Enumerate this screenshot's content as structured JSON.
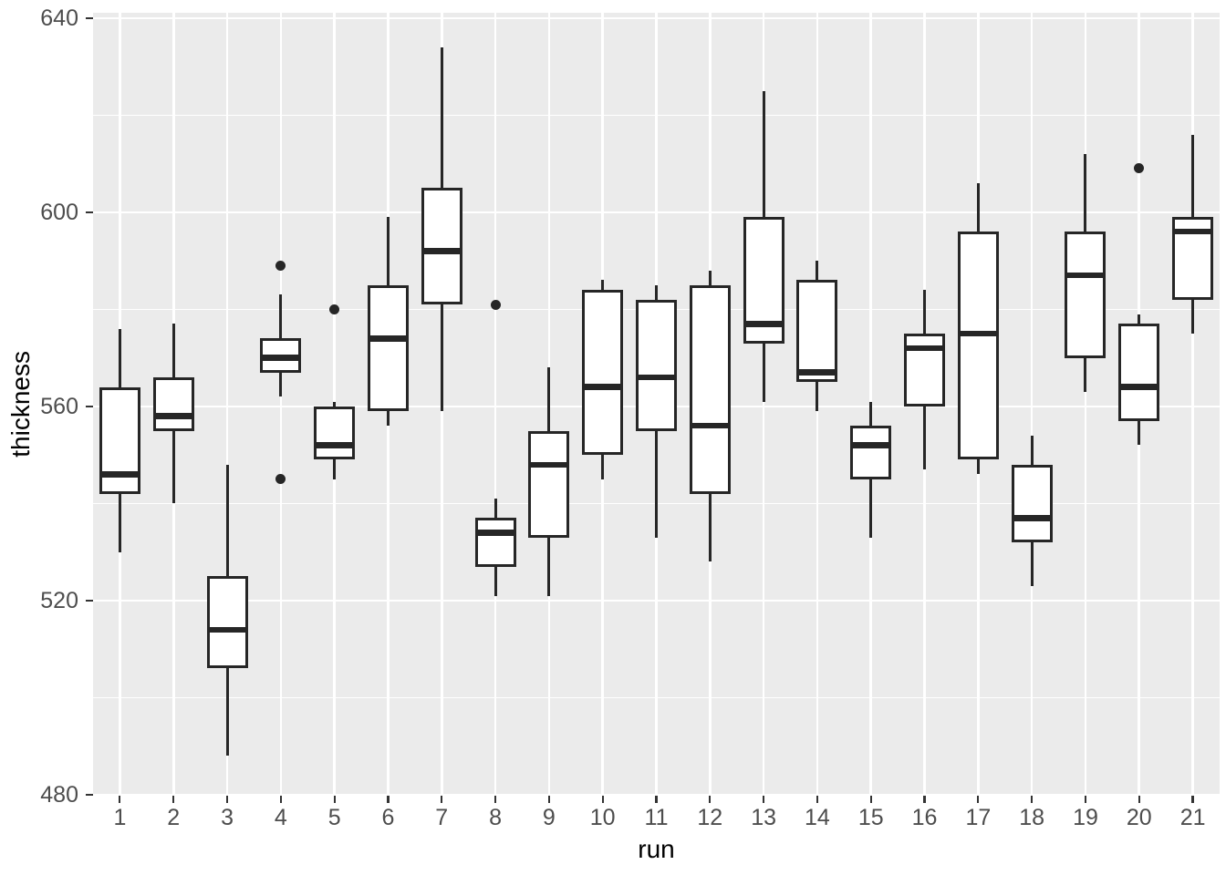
{
  "chart_data": {
    "type": "boxplot",
    "title": "",
    "xlabel": "run",
    "ylabel": "thickness",
    "categories": [
      "1",
      "2",
      "3",
      "4",
      "5",
      "6",
      "7",
      "8",
      "9",
      "10",
      "11",
      "12",
      "13",
      "14",
      "15",
      "16",
      "17",
      "18",
      "19",
      "20",
      "21"
    ],
    "ylim": [
      479.8,
      641.1
    ],
    "y_axis": {
      "ticks": [
        480,
        520,
        560,
        600,
        640
      ],
      "minor_ticks": [
        500,
        540,
        580,
        620
      ],
      "grid": "on",
      "tick_labels": [
        "480",
        "520",
        "560",
        "600",
        "640"
      ]
    },
    "boxes": [
      {
        "run": "1",
        "whisker_low": 530,
        "q1": 542,
        "median": 546,
        "q3": 564,
        "whisker_high": 576,
        "outliers": []
      },
      {
        "run": "2",
        "whisker_low": 540,
        "q1": 555,
        "median": 558,
        "q3": 566,
        "whisker_high": 577,
        "outliers": []
      },
      {
        "run": "3",
        "whisker_low": 488,
        "q1": 506,
        "median": 514,
        "q3": 525,
        "whisker_high": 548,
        "outliers": []
      },
      {
        "run": "4",
        "whisker_low": 562,
        "q1": 567,
        "median": 570,
        "q3": 574,
        "whisker_high": 583,
        "outliers": [
          589,
          545
        ]
      },
      {
        "run": "5",
        "whisker_low": 545,
        "q1": 549,
        "median": 552,
        "q3": 560,
        "whisker_high": 561,
        "outliers": [
          580
        ]
      },
      {
        "run": "6",
        "whisker_low": 556,
        "q1": 559,
        "median": 574,
        "q3": 585,
        "whisker_high": 599,
        "outliers": []
      },
      {
        "run": "7",
        "whisker_low": 559,
        "q1": 581,
        "median": 592,
        "q3": 605,
        "whisker_high": 634,
        "outliers": []
      },
      {
        "run": "8",
        "whisker_low": 521,
        "q1": 527,
        "median": 534,
        "q3": 537,
        "whisker_high": 541,
        "outliers": [
          581
        ]
      },
      {
        "run": "9",
        "whisker_low": 521,
        "q1": 533,
        "median": 548,
        "q3": 555,
        "whisker_high": 568,
        "outliers": []
      },
      {
        "run": "10",
        "whisker_low": 545,
        "q1": 550,
        "median": 564,
        "q3": 584,
        "whisker_high": 586,
        "outliers": []
      },
      {
        "run": "11",
        "whisker_low": 533,
        "q1": 555,
        "median": 566,
        "q3": 582,
        "whisker_high": 585,
        "outliers": []
      },
      {
        "run": "12",
        "whisker_low": 528,
        "q1": 542,
        "median": 556,
        "q3": 585,
        "whisker_high": 588,
        "outliers": []
      },
      {
        "run": "13",
        "whisker_low": 561,
        "q1": 573,
        "median": 577,
        "q3": 599,
        "whisker_high": 625,
        "outliers": []
      },
      {
        "run": "14",
        "whisker_low": 559,
        "q1": 565,
        "median": 567,
        "q3": 586,
        "whisker_high": 590,
        "outliers": []
      },
      {
        "run": "15",
        "whisker_low": 533,
        "q1": 545,
        "median": 552,
        "q3": 556,
        "whisker_high": 561,
        "outliers": []
      },
      {
        "run": "16",
        "whisker_low": 547,
        "q1": 560,
        "median": 572,
        "q3": 575,
        "whisker_high": 584,
        "outliers": []
      },
      {
        "run": "17",
        "whisker_low": 546,
        "q1": 549,
        "median": 575,
        "q3": 596,
        "whisker_high": 606,
        "outliers": []
      },
      {
        "run": "18",
        "whisker_low": 523,
        "q1": 532,
        "median": 537,
        "q3": 548,
        "whisker_high": 554,
        "outliers": []
      },
      {
        "run": "19",
        "whisker_low": 563,
        "q1": 570,
        "median": 587,
        "q3": 596,
        "whisker_high": 612,
        "outliers": []
      },
      {
        "run": "20",
        "whisker_low": 552,
        "q1": 557,
        "median": 564,
        "q3": 577,
        "whisker_high": 579,
        "outliers": [
          609
        ]
      },
      {
        "run": "21",
        "whisker_low": 575,
        "q1": 582,
        "median": 596,
        "q3": 599,
        "whisker_high": 616,
        "outliers": []
      }
    ],
    "legend": "none"
  },
  "style": {
    "panel_bg": "#EBEBEB",
    "grid_color": "#FFFFFF",
    "box_fill": "#FFFFFF",
    "line_color": "#262626",
    "tick_mark_color": "#333333",
    "tick_label_color": "#4D4D4D",
    "title_color": "#000000"
  }
}
